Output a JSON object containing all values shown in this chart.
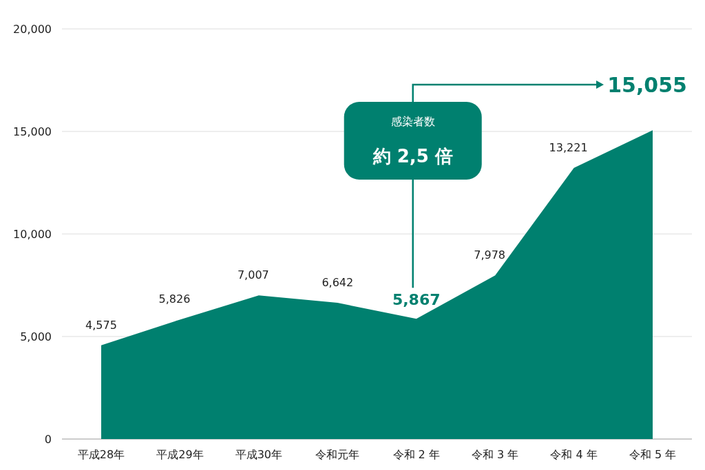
{
  "chart_data": {
    "type": "area",
    "categories": [
      "平成28年",
      "平成29年",
      "平成30年",
      "令和元年",
      "令和 2 年",
      "令和 3 年",
      "令和 4 年",
      "令和 5 年"
    ],
    "values": [
      4575,
      5826,
      7007,
      6642,
      5867,
      7978,
      13221,
      15055
    ],
    "value_labels": [
      "4,575",
      "5,826",
      "7,007",
      "6,642",
      "5,867",
      "7,978",
      "13,221",
      "15,055"
    ],
    "color": "#00806f",
    "grid": "y",
    "ylim": [
      0,
      20000
    ],
    "yticks": [
      0,
      {
        "value": 5000,
        "label": "5,000"
      },
      {
        "value": 10000,
        "label": "10,000"
      },
      {
        "value": 15000,
        "label": "15,000"
      },
      {
        "value": 20000,
        "label": "20,000"
      }
    ],
    "annotations": [
      "感染者数",
      "約 2,5 倍"
    ]
  }
}
